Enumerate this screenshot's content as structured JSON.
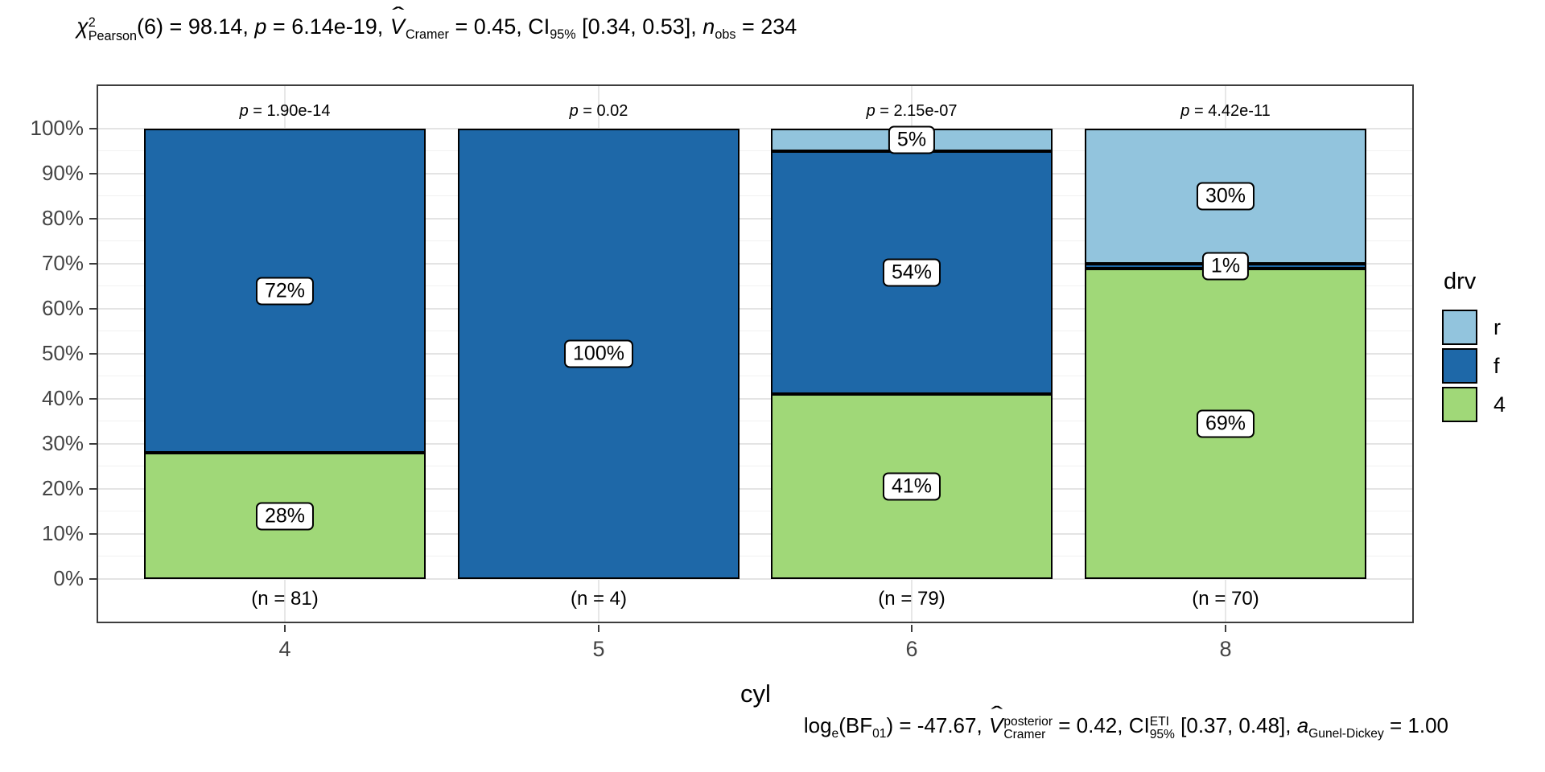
{
  "stats_header": {
    "parts": [
      {
        "t": "i",
        "v": "χ"
      },
      {
        "t": "supsub",
        "sup": "2",
        "sub": "Pearson"
      },
      {
        "t": "n",
        "v": "(6) = 98.14, "
      },
      {
        "t": "i",
        "v": "p"
      },
      {
        "t": "n",
        "v": " = 6.14e-19, "
      },
      {
        "t": "hat",
        "v": "V"
      },
      {
        "t": "sub",
        "v": "Cramer"
      },
      {
        "t": "n",
        "v": " = 0.45, CI"
      },
      {
        "t": "sub",
        "v": "95%"
      },
      {
        "t": "n",
        "v": " [0.34, 0.53], "
      },
      {
        "t": "i",
        "v": "n"
      },
      {
        "t": "sub",
        "v": "obs"
      },
      {
        "t": "n",
        "v": " = 234"
      }
    ]
  },
  "stats_caption": {
    "parts": [
      {
        "t": "n",
        "v": "log"
      },
      {
        "t": "sub",
        "v": "e"
      },
      {
        "t": "n",
        "v": "(BF"
      },
      {
        "t": "sub",
        "v": "01"
      },
      {
        "t": "n",
        "v": ") = -47.67, "
      },
      {
        "t": "hat",
        "v": "V"
      },
      {
        "t": "supsub",
        "sup": "posterior",
        "sub": "Cramer"
      },
      {
        "t": "n",
        "v": " = 0.42, CI"
      },
      {
        "t": "supsub",
        "sup": "ETI",
        "sub": "95%"
      },
      {
        "t": "n",
        "v": " [0.37, 0.48], "
      },
      {
        "t": "i",
        "v": "a"
      },
      {
        "t": "sub",
        "v": "Gunel-Dickey"
      },
      {
        "t": "n",
        "v": " = 1.00"
      }
    ]
  },
  "chart_data": {
    "type": "bar",
    "variant": "stacked-percent",
    "title": "χ²_Pearson(6) = 98.14, p = 6.14e-19, V̂_Cramer = 0.45, CI_95% [0.34, 0.53], n_obs = 234",
    "caption": "log_e(BF_01) = -47.67, V̂_Cramer^posterior = 0.42, CI_95%^ETI [0.37, 0.48], a_Gunel-Dickey = 1.00",
    "xlabel": "cyl",
    "categories": [
      "4",
      "5",
      "6",
      "8"
    ],
    "series": [
      {
        "name": "r",
        "color": "#92C4DD",
        "values": [
          0,
          0,
          5,
          30
        ]
      },
      {
        "name": "f",
        "color": "#1E68A8",
        "values": [
          72,
          100,
          54,
          1
        ]
      },
      {
        "name": "4",
        "color": "#A0D878",
        "values": [
          28,
          0,
          41,
          69
        ]
      }
    ],
    "p_values": [
      "p = 1.90e-14",
      "p = 0.02",
      "p = 2.15e-07",
      "p = 4.42e-11"
    ],
    "counts": [
      "(n = 81)",
      "(n = 4)",
      "(n = 79)",
      "(n = 70)"
    ],
    "y_ticks": [
      "0%",
      "10%",
      "20%",
      "30%",
      "40%",
      "50%",
      "60%",
      "70%",
      "80%",
      "90%",
      "100%"
    ],
    "ylim": [
      0,
      100
    ],
    "grid": true,
    "legend": {
      "title": "drv",
      "position": "right",
      "entries": [
        {
          "label": "r",
          "color": "#92C4DD"
        },
        {
          "label": "f",
          "color": "#1E68A8"
        },
        {
          "label": "4",
          "color": "#A0D878"
        }
      ]
    }
  }
}
